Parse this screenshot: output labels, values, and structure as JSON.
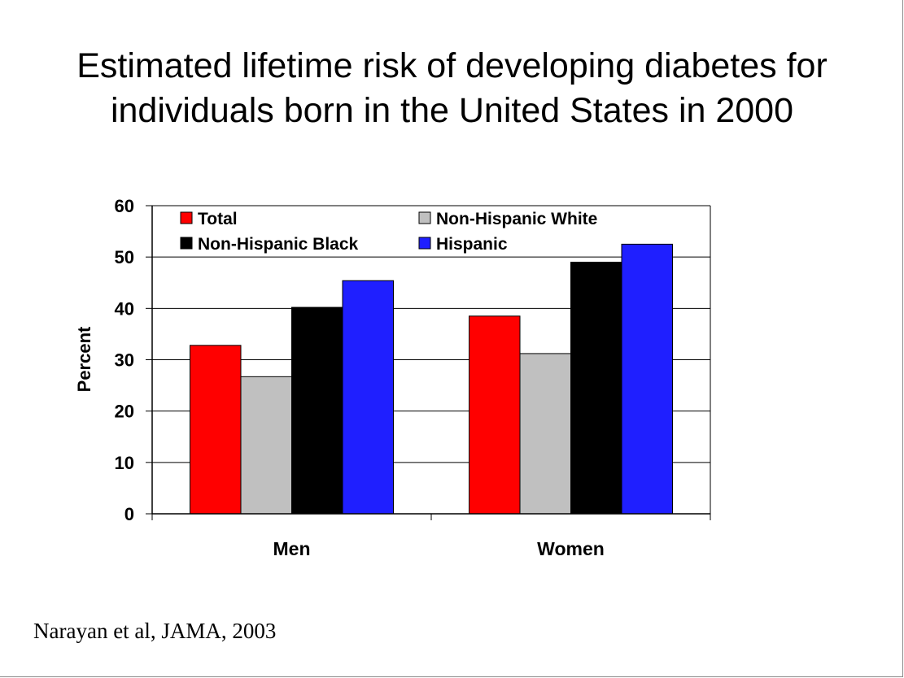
{
  "slide": {
    "title_line1": "Estimated lifetime risk of developing diabetes for",
    "title_line2": "individuals born in the United States in 2000",
    "source": "Narayan et al, JAMA, 2003"
  },
  "chart_data": {
    "type": "bar",
    "categories": [
      "Men",
      "Women"
    ],
    "series": [
      {
        "name": "Total",
        "values": [
          32.8,
          38.5
        ],
        "color": "#ff0000"
      },
      {
        "name": "Non-Hispanic White",
        "values": [
          26.7,
          31.2
        ],
        "color": "#c0c0c0"
      },
      {
        "name": "Non-Hispanic Black",
        "values": [
          40.2,
          49.0
        ],
        "color": "#000000"
      },
      {
        "name": "Hispanic",
        "values": [
          45.4,
          52.5
        ],
        "color": "#1f1fff"
      }
    ],
    "ylabel": "Percent",
    "xlabel": "",
    "ylim": [
      0,
      60
    ],
    "yticks": [
      "0",
      "10",
      "20",
      "30",
      "40",
      "50",
      "60"
    ],
    "grid": true,
    "legend_position": "top, inside plot"
  }
}
